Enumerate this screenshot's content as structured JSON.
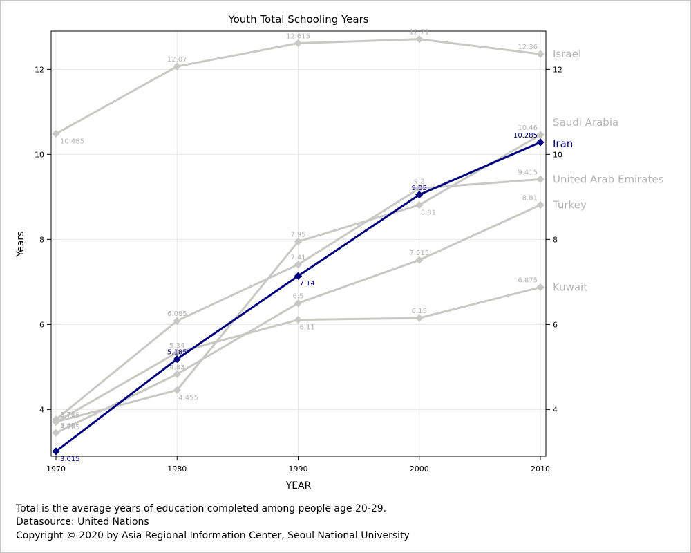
{
  "chart_data": {
    "type": "line",
    "title": "Youth Total Schooling Years",
    "xlabel": "YEAR",
    "ylabel": "Years",
    "x": [
      1970,
      1980,
      1990,
      2000,
      2010
    ],
    "xlim": [
      1970,
      2010
    ],
    "ylim": [
      2.9,
      12.9
    ],
    "yticks": [
      4,
      6,
      8,
      10,
      12
    ],
    "grid": true,
    "series": [
      {
        "name": "Israel",
        "values": [
          10.485,
          12.07,
          12.615,
          12.71,
          12.36
        ],
        "labels": [
          "10.485",
          "12.07",
          "12.615",
          "12.71",
          "12.36"
        ],
        "highlight": false
      },
      {
        "name": "Saudi Arabia",
        "values": [
          3.71,
          4.455,
          7.95,
          8.81,
          10.46
        ],
        "labels": [
          "3.71",
          "4.455",
          "7.95",
          "8.81",
          "10.46"
        ],
        "highlight": false
      },
      {
        "name": "United Arab Emirates",
        "values": [
          3.765,
          6.085,
          7.41,
          9.2,
          9.415
        ],
        "labels": [
          "3.765",
          "6.085",
          "7.41",
          "9.2",
          "9.415"
        ],
        "highlight": false
      },
      {
        "name": "Turkey",
        "values": [
          3.45,
          4.83,
          6.5,
          7.515,
          8.81
        ],
        "labels": [
          "3.45",
          "4.83",
          "6.5",
          "7.515",
          "8.81"
        ],
        "highlight": false
      },
      {
        "name": "Kuwait",
        "values": [
          3.705,
          5.34,
          6.11,
          6.15,
          6.875
        ],
        "labels": [
          "3.705",
          "5.34",
          "6.11",
          "6.15",
          "6.875"
        ],
        "highlight": false
      },
      {
        "name": "Iran",
        "values": [
          3.015,
          5.185,
          7.14,
          9.05,
          10.285
        ],
        "labels": [
          "3.015",
          "5.185",
          "7.14",
          "9.05",
          "10.285"
        ],
        "highlight": true
      }
    ],
    "colors": {
      "highlight": "#00007f",
      "muted": "#c8c8c4",
      "muted_label": "#b4b4b4",
      "grid": "#e8e8e8",
      "axis": "#000000"
    }
  },
  "footer": {
    "note": "Total is the average years of education completed among people age 20-29.",
    "source": "Datasource: United Nations",
    "copyright": "Copyright © 2020 by Asia Regional Information Center, Seoul National University"
  }
}
